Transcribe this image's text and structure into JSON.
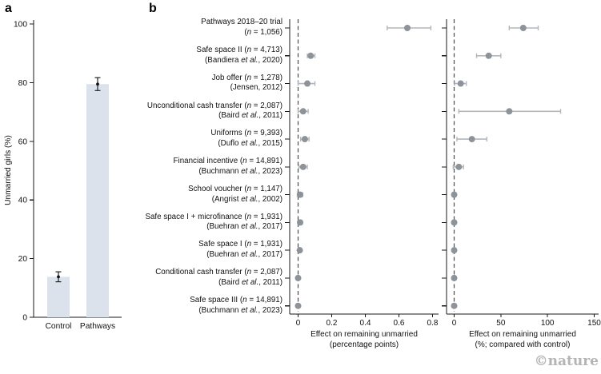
{
  "panels": {
    "a": {
      "label": "a"
    },
    "b": {
      "label": "b"
    }
  },
  "watermark": "©nature",
  "studies": [
    {
      "line1": "Pathways 2018–20 trial",
      "line2": "(n = 1,056)"
    },
    {
      "line1": "Safe space II (n = 4,713)",
      "line2": "(Bandiera et al., 2020)"
    },
    {
      "line1": "Job offer (n = 1,278)",
      "line2": "(Jensen, 2012)"
    },
    {
      "line1": "Unconditional cash transfer (n = 2,087)",
      "line2": "(Baird et al., 2011)"
    },
    {
      "line1": "Uniforms (n = 9,393)",
      "line2": "(Duflo et al., 2015)"
    },
    {
      "line1": "Financial incentive (n = 14,891)",
      "line2": "(Buchmann et al., 2023)"
    },
    {
      "line1": "School voucher (n = 1,147)",
      "line2": "(Angrist et al., 2002)"
    },
    {
      "line1": "Safe space I + microfinance (n = 1,931)",
      "line2": "(Buehran et al., 2017)"
    },
    {
      "line1": "Safe space I (n = 1,931)",
      "line2": "(Buehran et al., 2017)"
    },
    {
      "line1": "Conditional cash transfer (n = 2,087)",
      "line2": "(Baird et al., 2011)"
    },
    {
      "line1": "Safe space III (n = 14,891)",
      "line2": "(Buchmann et al., 2023)"
    }
  ],
  "chart_data": [
    {
      "type": "bar",
      "categories": [
        "Control",
        "Pathways"
      ],
      "values": [
        13.8,
        79.5
      ],
      "errors": [
        1.7,
        2.2
      ],
      "ylabel": "Unmarried girls (%)",
      "ylim": [
        0,
        100
      ],
      "yticks": [
        0,
        20,
        40,
        60,
        80,
        100
      ],
      "ytick_labels": [
        "0",
        "20",
        "40",
        "60",
        "80",
        "100"
      ]
    },
    {
      "type": "forest",
      "xlabel": [
        "Effect on remaining unmarried",
        "(percentage points)"
      ],
      "xlim": [
        -0.05,
        0.84
      ],
      "xticks": [
        0,
        0.2,
        0.4,
        0.6,
        0.8
      ],
      "xtick_labels": [
        "0",
        "0.2",
        "0.4",
        "0.6",
        "0.8"
      ],
      "zero_line": 0,
      "rows": [
        {
          "study": "Pathways 2018–20 trial",
          "estimate": 0.65,
          "ci_low": 0.53,
          "ci_high": 0.79
        },
        {
          "study": "Safe space II",
          "estimate": 0.075,
          "ci_low": 0.055,
          "ci_high": 0.1
        },
        {
          "study": "Job offer",
          "estimate": 0.055,
          "ci_low": 0.0,
          "ci_high": 0.1
        },
        {
          "study": "Unconditional cash transfer",
          "estimate": 0.03,
          "ci_low": 0.0,
          "ci_high": 0.06
        },
        {
          "study": "Uniforms",
          "estimate": 0.04,
          "ci_low": 0.015,
          "ci_high": 0.065
        },
        {
          "study": "Financial incentive",
          "estimate": 0.03,
          "ci_low": 0.005,
          "ci_high": 0.055
        },
        {
          "study": "School voucher",
          "estimate": 0.012,
          "ci_low": -0.005,
          "ci_high": 0.028
        },
        {
          "study": "Safe space I + microfinance",
          "estimate": 0.012,
          "ci_low": 0.0,
          "ci_high": 0.025
        },
        {
          "study": "Safe space I",
          "estimate": 0.01,
          "ci_low": 0.0,
          "ci_high": 0.02
        },
        {
          "study": "Conditional cash transfer",
          "estimate": 0.0,
          "ci_low": -0.01,
          "ci_high": 0.01
        },
        {
          "study": "Safe space III",
          "estimate": 0.0,
          "ci_low": -0.008,
          "ci_high": 0.008
        }
      ]
    },
    {
      "type": "forest",
      "xlabel": [
        "Effect on remaining unmarried",
        "(%; compared with control)"
      ],
      "xlim": [
        -8,
        155
      ],
      "xticks": [
        0,
        50,
        100,
        150
      ],
      "xtick_labels": [
        "0",
        "50",
        "100",
        "150"
      ],
      "zero_line": 0,
      "rows": [
        {
          "study": "Pathways 2018–20 trial",
          "estimate": 74,
          "ci_low": 59,
          "ci_high": 90
        },
        {
          "study": "Safe space II",
          "estimate": 37,
          "ci_low": 24,
          "ci_high": 50
        },
        {
          "study": "Job offer",
          "estimate": 7,
          "ci_low": 0.5,
          "ci_high": 13
        },
        {
          "study": "Unconditional cash transfer",
          "estimate": 59,
          "ci_low": 5,
          "ci_high": 114
        },
        {
          "study": "Uniforms",
          "estimate": 19,
          "ci_low": 3,
          "ci_high": 35
        },
        {
          "study": "Financial incentive",
          "estimate": 5,
          "ci_low": -1,
          "ci_high": 10
        },
        {
          "study": "School voucher",
          "estimate": 0,
          "ci_low": -2,
          "ci_high": 2
        },
        {
          "study": "Safe space I + microfinance",
          "estimate": 0,
          "ci_low": -2,
          "ci_high": 2
        },
        {
          "study": "Safe space I",
          "estimate": 0,
          "ci_low": -2,
          "ci_high": 2
        },
        {
          "study": "Conditional cash transfer",
          "estimate": 0,
          "ci_low": -2,
          "ci_high": 2
        },
        {
          "study": "Safe space III",
          "estimate": 0,
          "ci_low": -2,
          "ci_high": 2
        }
      ]
    }
  ],
  "colors": {
    "bar_fill": "#dbe2ec",
    "point": "#8e9399",
    "ci": "#b3b7bc",
    "axis": "#1a1a1a",
    "error_bar": "#222222",
    "dashed": "#4d4d4d",
    "watermark": "#b4b4b4"
  }
}
